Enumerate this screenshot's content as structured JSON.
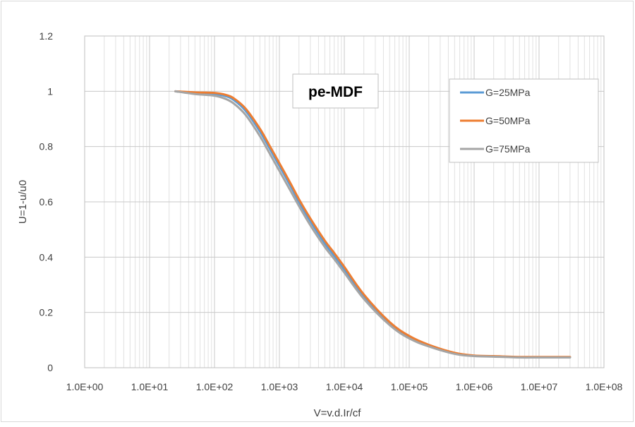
{
  "chart_data": {
    "type": "line",
    "title": "pe-MDF",
    "xlabel": "V=v.d.Ir/cf",
    "ylabel": "U=1-u/u0",
    "xscale": "log",
    "xlim": [
      1,
      100000000
    ],
    "ylim": [
      0,
      1.2
    ],
    "x_ticks": [
      1,
      10,
      100,
      1000,
      10000,
      100000,
      1000000,
      10000000,
      100000000
    ],
    "x_tick_labels": [
      "1.0E+00",
      "1.0E+01",
      "1.0E+02",
      "1.0E+03",
      "1.0E+04",
      "1.0E+05",
      "1.0E+06",
      "1.0E+07",
      "1.0E+08"
    ],
    "y_ticks": [
      0,
      0.2,
      0.4,
      0.6,
      0.8,
      1,
      1.2
    ],
    "y_tick_labels": [
      "0",
      "0.2",
      "0.4",
      "0.6",
      "0.8",
      "1",
      "1.2"
    ],
    "grid": true,
    "legend_position": "top-right",
    "series": [
      {
        "name": "G=25MPa",
        "color": "#5B9BD5",
        "x": [
          25,
          50,
          100,
          150,
          200,
          300,
          500,
          700,
          1000,
          1500,
          2000,
          3000,
          5000,
          7000,
          10000,
          20000,
          50000,
          100000,
          200000,
          500000,
          1000000,
          2000000,
          5000000,
          10000000,
          30000000
        ],
        "y": [
          1.0,
          0.993,
          0.99,
          0.982,
          0.968,
          0.93,
          0.855,
          0.795,
          0.73,
          0.655,
          0.6,
          0.53,
          0.45,
          0.405,
          0.355,
          0.258,
          0.16,
          0.11,
          0.08,
          0.052,
          0.043,
          0.041,
          0.038,
          0.038,
          0.038
        ]
      },
      {
        "name": "G=50MPa",
        "color": "#ED7D31",
        "x": [
          25,
          50,
          100,
          150,
          200,
          300,
          500,
          700,
          1000,
          1500,
          2000,
          3000,
          5000,
          7000,
          10000,
          20000,
          50000,
          100000,
          200000,
          500000,
          1000000,
          2000000,
          5000000,
          10000000,
          30000000
        ],
        "y": [
          1.0,
          0.996,
          0.994,
          0.987,
          0.974,
          0.938,
          0.865,
          0.805,
          0.74,
          0.665,
          0.61,
          0.54,
          0.46,
          0.415,
          0.365,
          0.265,
          0.165,
          0.115,
          0.083,
          0.054,
          0.044,
          0.042,
          0.039,
          0.039,
          0.039
        ]
      },
      {
        "name": "G=75MPa",
        "color": "#A5A5A5",
        "x": [
          25,
          50,
          100,
          150,
          200,
          300,
          500,
          700,
          1000,
          1500,
          2000,
          3000,
          5000,
          7000,
          10000,
          20000,
          50000,
          100000,
          200000,
          500000,
          1000000,
          2000000,
          5000000,
          10000000,
          30000000
        ],
        "y": [
          1.0,
          0.99,
          0.984,
          0.972,
          0.955,
          0.915,
          0.838,
          0.777,
          0.712,
          0.638,
          0.585,
          0.515,
          0.437,
          0.393,
          0.344,
          0.249,
          0.154,
          0.106,
          0.077,
          0.05,
          0.042,
          0.04,
          0.037,
          0.037,
          0.037
        ]
      }
    ]
  }
}
